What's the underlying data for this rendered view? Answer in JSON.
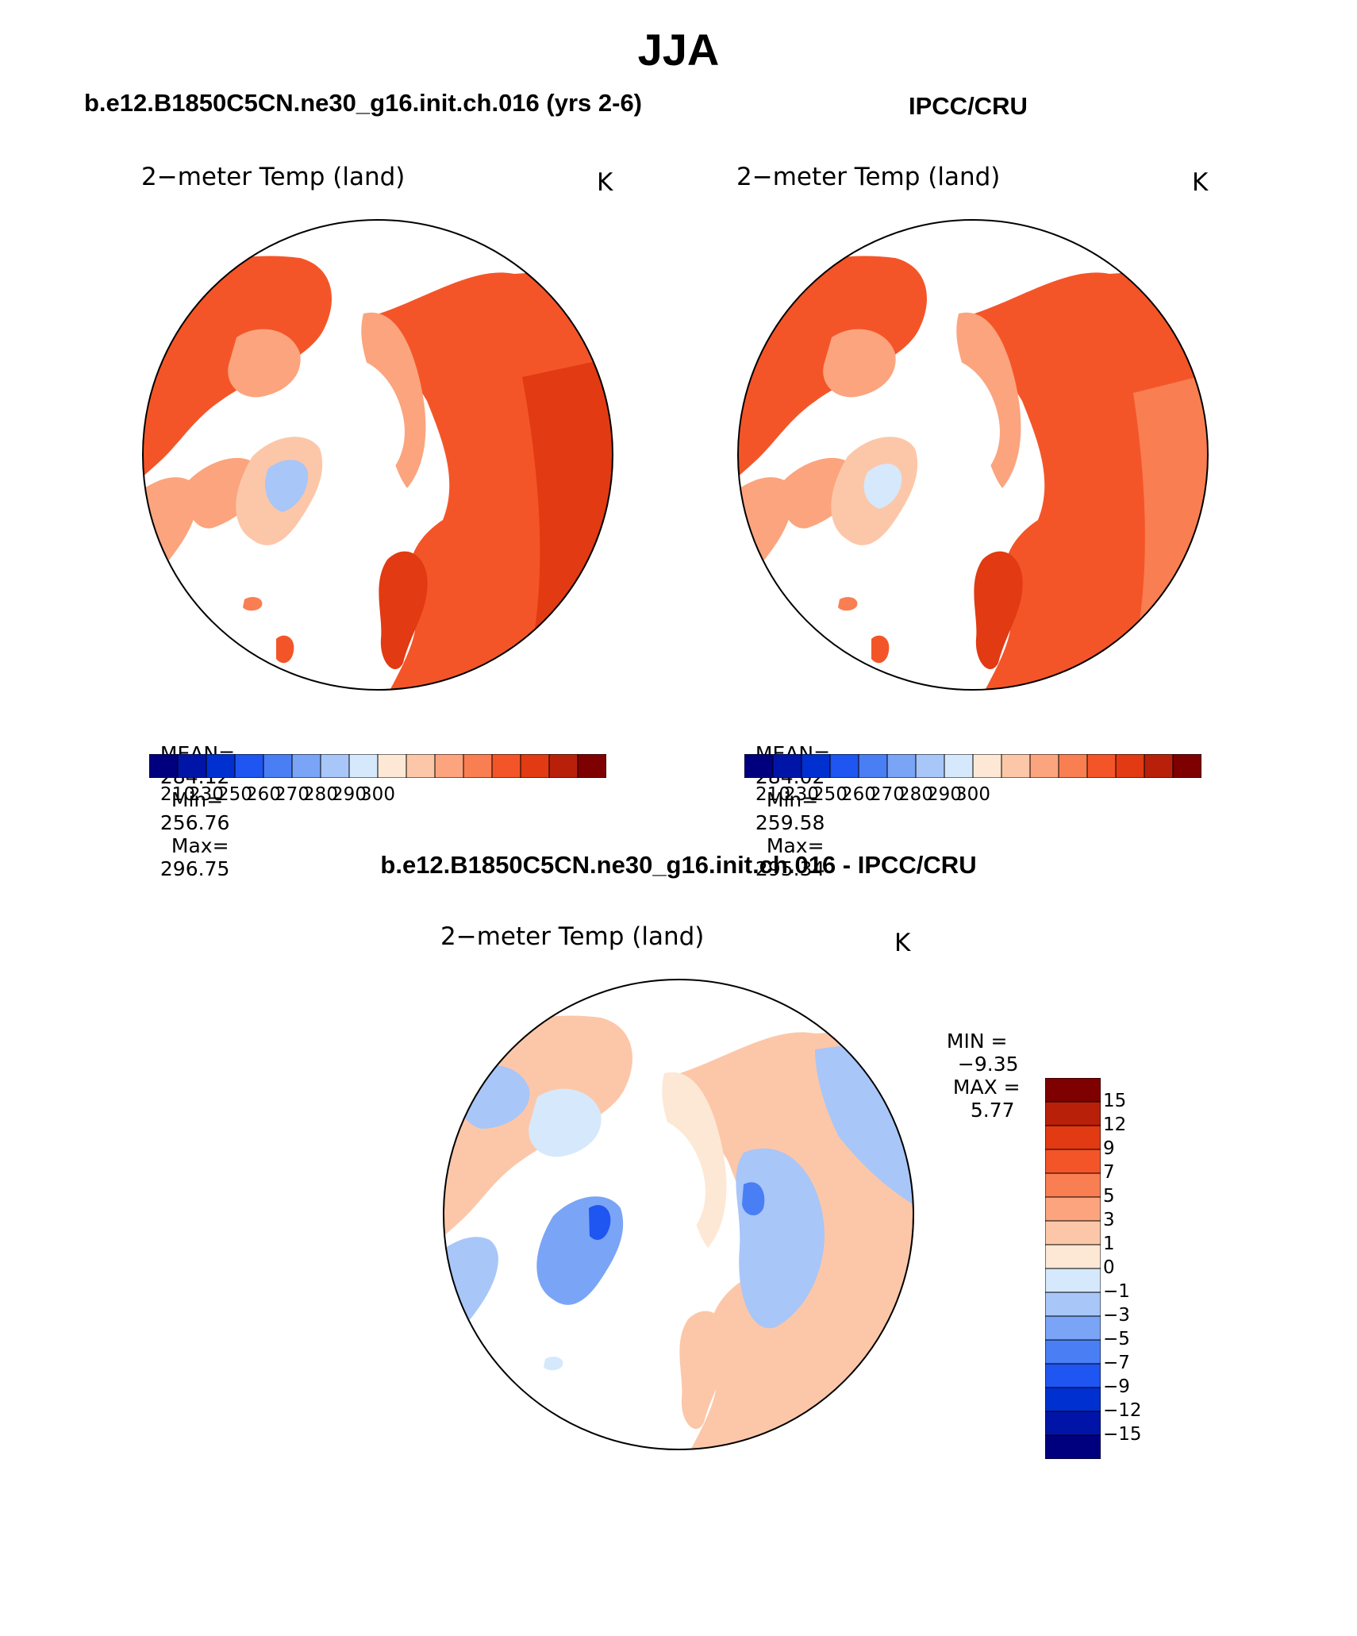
{
  "main_title": "JJA",
  "panels": [
    {
      "case_title": "b.e12.B1850C5CN.ne30_g16.init.ch.016 (yrs 2-6)",
      "field_label": "2−meter Temp (land)",
      "units": "K",
      "stats": {
        "mean_label": "MEAN=",
        "mean": "284.12",
        "min_label": "Min=",
        "min": "256.76",
        "max_label": "Max=",
        "max": "296.75"
      }
    },
    {
      "case_title": "IPCC/CRU",
      "field_label": "2−meter Temp (land)",
      "units": "K",
      "stats": {
        "mean_label": "MEAN=",
        "mean": "284.02",
        "min_label": "Min=",
        "min": "259.58",
        "max_label": "Max=",
        "max": "295.34"
      }
    }
  ],
  "abs_colorbar": {
    "colors": [
      "#00007f",
      "#0015a8",
      "#0030d0",
      "#1f55f0",
      "#4a7ef5",
      "#7aa4f6",
      "#a8c6f8",
      "#d6e8fb",
      "#fde8d5",
      "#fcc7a8",
      "#fba47e",
      "#f97e52",
      "#f45528",
      "#e23a12",
      "#b8200a",
      "#7f0000"
    ],
    "tick_labels": [
      "210",
      "230",
      "250",
      "260",
      "270",
      "280",
      "290",
      "300"
    ]
  },
  "diff_panel": {
    "title": "b.e12.B1850C5CN.ne30_g16.init.ch.016 - IPCC/CRU",
    "field_label": "2−meter Temp (land)",
    "units": "K",
    "min_label": "MIN =",
    "min_value": "−9.35",
    "max_label": "MAX =",
    "max_value": "5.77"
  },
  "diff_colorbar": {
    "colors": [
      "#7f0000",
      "#b8200a",
      "#e23a12",
      "#f45528",
      "#f97e52",
      "#fba47e",
      "#fcc7a8",
      "#fde8d5",
      "#d6e8fb",
      "#a8c6f8",
      "#7aa4f6",
      "#4a7ef5",
      "#1f55f0",
      "#0030d0",
      "#0015a8",
      "#00007f"
    ],
    "tick_labels": [
      "15",
      "12",
      "9",
      "7",
      "5",
      "3",
      "1",
      "0",
      "−1",
      "−3",
      "−5",
      "−7",
      "−9",
      "−12",
      "−15"
    ]
  }
}
